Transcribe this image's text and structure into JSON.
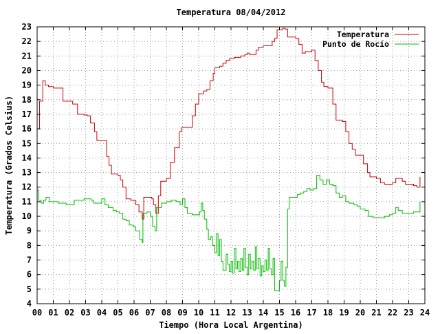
{
  "chart_data": {
    "type": "line",
    "title": "Temperatura 08/04/2012",
    "xlabel": "Tiempo (Hora Local Argentina)",
    "ylabel": "Temperatura (Grados Celsius)",
    "xlim": [
      0,
      24
    ],
    "ylim": [
      4,
      23
    ],
    "grid": true,
    "legend": "top-right",
    "x_ticks": [
      "00",
      "01",
      "02",
      "03",
      "04",
      "05",
      "06",
      "07",
      "08",
      "09",
      "10",
      "11",
      "12",
      "13",
      "14",
      "15",
      "16",
      "17",
      "18",
      "19",
      "20",
      "21",
      "22",
      "23",
      "24"
    ],
    "y_ticks": [
      4,
      5,
      6,
      7,
      8,
      9,
      10,
      11,
      12,
      13,
      14,
      15,
      16,
      17,
      18,
      19,
      20,
      21,
      22,
      23
    ],
    "series": [
      {
        "name": "Temperatura",
        "color": "#cc0000",
        "points": [
          [
            0,
            16.0
          ],
          [
            0.15,
            17.9
          ],
          [
            0.35,
            19.3
          ],
          [
            0.5,
            19.0
          ],
          [
            0.7,
            18.9
          ],
          [
            1.0,
            18.8
          ],
          [
            1.4,
            18.8
          ],
          [
            1.6,
            17.9
          ],
          [
            2.0,
            17.9
          ],
          [
            2.2,
            17.7
          ],
          [
            2.5,
            17.0
          ],
          [
            2.9,
            16.95
          ],
          [
            3.1,
            16.9
          ],
          [
            3.3,
            16.4
          ],
          [
            3.55,
            15.8
          ],
          [
            3.7,
            15.2
          ],
          [
            4.1,
            15.2
          ],
          [
            4.3,
            14.1
          ],
          [
            4.45,
            13.5
          ],
          [
            4.6,
            12.9
          ],
          [
            5.0,
            12.8
          ],
          [
            5.15,
            12.5
          ],
          [
            5.3,
            12.0
          ],
          [
            5.5,
            11.2
          ],
          [
            5.8,
            11.1
          ],
          [
            6.1,
            10.8
          ],
          [
            6.3,
            10.3
          ],
          [
            6.5,
            9.8
          ],
          [
            6.6,
            11.3
          ],
          [
            7.1,
            11.2
          ],
          [
            7.2,
            10.8
          ],
          [
            7.35,
            10.2
          ],
          [
            7.5,
            11.4
          ],
          [
            7.65,
            12.4
          ],
          [
            8.0,
            12.6
          ],
          [
            8.25,
            13.7
          ],
          [
            8.5,
            14.7
          ],
          [
            8.8,
            15.8
          ],
          [
            8.95,
            16.1
          ],
          [
            9.4,
            16.1
          ],
          [
            9.6,
            16.9
          ],
          [
            9.8,
            17.7
          ],
          [
            10.0,
            18.4
          ],
          [
            10.3,
            18.6
          ],
          [
            10.5,
            18.7
          ],
          [
            10.7,
            19.3
          ],
          [
            10.9,
            19.8
          ],
          [
            11.0,
            20.2
          ],
          [
            11.3,
            20.3
          ],
          [
            11.5,
            20.5
          ],
          [
            11.7,
            20.7
          ],
          [
            11.9,
            20.8
          ],
          [
            12.2,
            20.9
          ],
          [
            12.6,
            21.0
          ],
          [
            12.85,
            21.1
          ],
          [
            13.0,
            21.2
          ],
          [
            13.15,
            21.1
          ],
          [
            13.4,
            21.1
          ],
          [
            13.55,
            21.4
          ],
          [
            13.7,
            21.6
          ],
          [
            14.0,
            21.7
          ],
          [
            14.3,
            21.7
          ],
          [
            14.55,
            22.0
          ],
          [
            14.7,
            22.2
          ],
          [
            14.85,
            22.8
          ],
          [
            15.2,
            22.9
          ],
          [
            15.35,
            22.85
          ],
          [
            15.5,
            22.3
          ],
          [
            16.0,
            22.2
          ],
          [
            16.2,
            21.8
          ],
          [
            16.4,
            21.2
          ],
          [
            16.6,
            21.3
          ],
          [
            17.0,
            21.4
          ],
          [
            17.2,
            20.7
          ],
          [
            17.4,
            20.0
          ],
          [
            17.6,
            19.2
          ],
          [
            17.75,
            18.9
          ],
          [
            18.0,
            18.8
          ],
          [
            18.15,
            18.8
          ],
          [
            18.3,
            17.7
          ],
          [
            18.5,
            16.6
          ],
          [
            18.9,
            16.5
          ],
          [
            19.1,
            15.8
          ],
          [
            19.3,
            15.0
          ],
          [
            19.5,
            14.6
          ],
          [
            19.7,
            14.2
          ],
          [
            20.0,
            14.2
          ],
          [
            20.2,
            13.6
          ],
          [
            20.45,
            13.0
          ],
          [
            20.6,
            12.7
          ],
          [
            21.0,
            12.6
          ],
          [
            21.25,
            12.3
          ],
          [
            21.5,
            12.2
          ],
          [
            21.8,
            12.2
          ],
          [
            22.0,
            12.3
          ],
          [
            22.2,
            12.6
          ],
          [
            22.4,
            12.6
          ],
          [
            22.6,
            12.4
          ],
          [
            22.8,
            12.2
          ],
          [
            23.1,
            12.2
          ],
          [
            23.3,
            12.1
          ],
          [
            23.5,
            12.0
          ],
          [
            23.7,
            12.7
          ]
        ]
      },
      {
        "name": "Punto de Rocío",
        "color": "#00bb00",
        "points": [
          [
            0,
            11.8
          ],
          [
            0.1,
            11.1
          ],
          [
            0.25,
            10.9
          ],
          [
            0.4,
            11.1
          ],
          [
            0.55,
            11.3
          ],
          [
            0.75,
            11.0
          ],
          [
            1.0,
            11.0
          ],
          [
            1.3,
            10.9
          ],
          [
            1.6,
            10.9
          ],
          [
            1.8,
            10.8
          ],
          [
            2.0,
            10.8
          ],
          [
            2.3,
            11.1
          ],
          [
            2.6,
            11.1
          ],
          [
            2.9,
            11.2
          ],
          [
            3.1,
            11.2
          ],
          [
            3.35,
            11.1
          ],
          [
            3.5,
            10.9
          ],
          [
            3.75,
            10.9
          ],
          [
            4.0,
            11.2
          ],
          [
            4.2,
            10.8
          ],
          [
            4.4,
            10.6
          ],
          [
            4.7,
            10.4
          ],
          [
            4.9,
            10.3
          ],
          [
            5.1,
            10.2
          ],
          [
            5.3,
            9.8
          ],
          [
            5.5,
            9.7
          ],
          [
            5.7,
            9.4
          ],
          [
            5.95,
            9.3
          ],
          [
            6.1,
            9.0
          ],
          [
            6.35,
            8.4
          ],
          [
            6.5,
            8.2
          ],
          [
            6.55,
            10.2
          ],
          [
            6.8,
            10.3
          ],
          [
            7.0,
            10.0
          ],
          [
            7.15,
            9.3
          ],
          [
            7.3,
            9.0
          ],
          [
            7.4,
            10.6
          ],
          [
            7.7,
            10.9
          ],
          [
            8.0,
            11.0
          ],
          [
            8.3,
            11.1
          ],
          [
            8.6,
            11.0
          ],
          [
            8.85,
            10.8
          ],
          [
            9.0,
            11.2
          ],
          [
            9.15,
            10.6
          ],
          [
            9.3,
            10.2
          ],
          [
            9.6,
            10.1
          ],
          [
            9.9,
            10.1
          ],
          [
            10.05,
            10.3
          ],
          [
            10.15,
            10.9
          ],
          [
            10.25,
            10.4
          ],
          [
            10.35,
            9.8
          ],
          [
            10.5,
            9.1
          ],
          [
            10.6,
            8.4
          ],
          [
            10.75,
            8.6
          ],
          [
            10.85,
            8.0
          ],
          [
            11.0,
            7.5
          ],
          [
            11.1,
            8.8
          ],
          [
            11.2,
            7.3
          ],
          [
            11.3,
            8.4
          ],
          [
            11.4,
            6.9
          ],
          [
            11.5,
            6.3
          ],
          [
            11.6,
            6.3
          ],
          [
            11.7,
            7.4
          ],
          [
            11.8,
            6.7
          ],
          [
            11.9,
            6.2
          ],
          [
            12.0,
            6.9
          ],
          [
            12.1,
            6.1
          ],
          [
            12.2,
            7.8
          ],
          [
            12.3,
            6.4
          ],
          [
            12.4,
            6.9
          ],
          [
            12.5,
            6.2
          ],
          [
            12.6,
            7.1
          ],
          [
            12.7,
            6.3
          ],
          [
            12.8,
            7.8
          ],
          [
            12.9,
            6.5
          ],
          [
            13.0,
            6.0
          ],
          [
            13.1,
            7.4
          ],
          [
            13.2,
            6.4
          ],
          [
            13.3,
            6.9
          ],
          [
            13.4,
            6.3
          ],
          [
            13.5,
            7.9
          ],
          [
            13.6,
            6.4
          ],
          [
            13.7,
            7.1
          ],
          [
            13.8,
            5.9
          ],
          [
            13.9,
            6.6
          ],
          [
            14.0,
            6.2
          ],
          [
            14.1,
            7.0
          ],
          [
            14.2,
            6.3
          ],
          [
            14.3,
            7.8
          ],
          [
            14.4,
            6.4
          ],
          [
            14.5,
            6.0
          ],
          [
            14.6,
            7.1
          ],
          [
            14.7,
            4.9
          ],
          [
            14.9,
            4.9
          ],
          [
            15.0,
            5.6
          ],
          [
            15.1,
            6.9
          ],
          [
            15.2,
            5.6
          ],
          [
            15.3,
            5.2
          ],
          [
            15.4,
            6.5
          ],
          [
            15.5,
            10.5
          ],
          [
            15.6,
            11.3
          ],
          [
            15.9,
            11.3
          ],
          [
            16.1,
            11.5
          ],
          [
            16.3,
            11.6
          ],
          [
            16.5,
            11.7
          ],
          [
            16.7,
            11.9
          ],
          [
            16.9,
            11.8
          ],
          [
            17.1,
            11.9
          ],
          [
            17.3,
            12.8
          ],
          [
            17.5,
            12.5
          ],
          [
            17.7,
            12.2
          ],
          [
            17.9,
            12.5
          ],
          [
            18.1,
            12.2
          ],
          [
            18.3,
            12.1
          ],
          [
            18.5,
            11.6
          ],
          [
            18.7,
            11.3
          ],
          [
            18.9,
            11.4
          ],
          [
            19.1,
            11.0
          ],
          [
            19.3,
            10.9
          ],
          [
            19.6,
            10.8
          ],
          [
            19.8,
            10.7
          ],
          [
            20.0,
            10.5
          ],
          [
            20.3,
            10.4
          ],
          [
            20.5,
            10.0
          ],
          [
            20.8,
            9.9
          ],
          [
            21.0,
            9.9
          ],
          [
            21.3,
            9.9
          ],
          [
            21.5,
            10.0
          ],
          [
            21.8,
            10.1
          ],
          [
            22.0,
            10.2
          ],
          [
            22.2,
            10.6
          ],
          [
            22.35,
            10.4
          ],
          [
            22.6,
            10.2
          ],
          [
            23.0,
            10.2
          ],
          [
            23.3,
            10.3
          ],
          [
            23.5,
            10.3
          ],
          [
            23.7,
            11.0
          ]
        ]
      }
    ]
  }
}
